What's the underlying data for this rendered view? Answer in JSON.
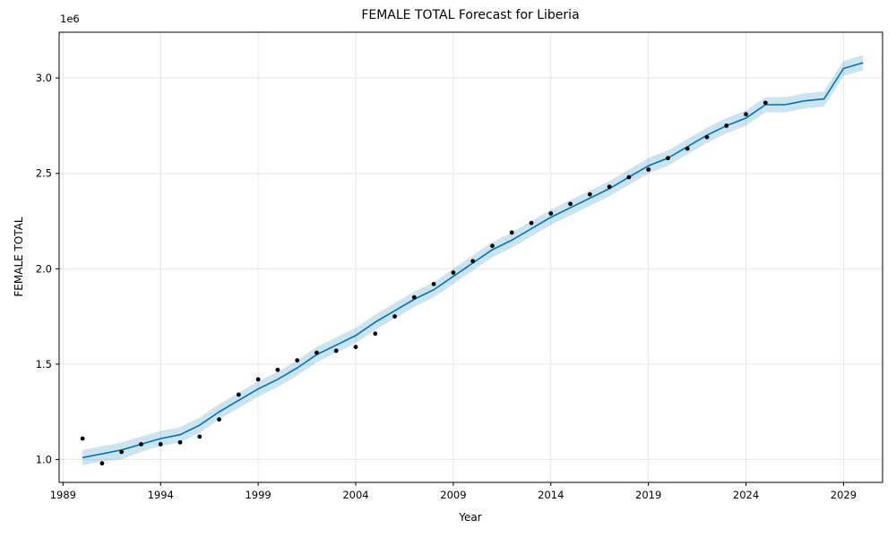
{
  "chart_data": {
    "type": "line",
    "title": "FEMALE TOTAL Forecast for Liberia",
    "xlabel": "Year",
    "ylabel": "FEMALE TOTAL",
    "y_offset_label": "1e6",
    "xlim": [
      1988.8,
      2031.0
    ],
    "ylim": [
      0.88,
      3.24
    ],
    "x_ticks": [
      1989,
      1994,
      1999,
      2004,
      2009,
      2014,
      2019,
      2024,
      2029
    ],
    "y_ticks": [
      1.0,
      1.5,
      2.0,
      2.5,
      3.0
    ],
    "y_tick_labels": [
      "1.0",
      "1.5",
      "2.0",
      "2.5",
      "3.0"
    ],
    "grid": true,
    "colors": {
      "forecast": "#0072b2",
      "band": "#0072b2",
      "observed": "#000000",
      "grid": "#e6e6e6"
    },
    "series": [
      {
        "role": "forecast",
        "x": [
          1990,
          1991,
          1992,
          1993,
          1994,
          1995,
          1996,
          1997,
          1998,
          1999,
          2000,
          2001,
          2002,
          2003,
          2004,
          2005,
          2006,
          2007,
          2008,
          2009,
          2010,
          2011,
          2012,
          2013,
          2014,
          2015,
          2016,
          2017,
          2018,
          2019,
          2020,
          2021,
          2022,
          2023,
          2024,
          2025,
          2026,
          2027,
          2028,
          2029,
          2030
        ],
        "values": [
          1.01,
          1.03,
          1.05,
          1.08,
          1.11,
          1.13,
          1.18,
          1.25,
          1.31,
          1.37,
          1.42,
          1.48,
          1.55,
          1.6,
          1.65,
          1.72,
          1.78,
          1.84,
          1.89,
          1.96,
          2.03,
          2.1,
          2.15,
          2.21,
          2.27,
          2.32,
          2.37,
          2.42,
          2.48,
          2.54,
          2.58,
          2.64,
          2.7,
          2.75,
          2.79,
          2.86,
          2.86,
          2.88,
          2.89,
          3.05,
          3.08
        ],
        "lower": [
          0.97,
          0.99,
          1.0,
          1.04,
          1.07,
          1.09,
          1.14,
          1.21,
          1.27,
          1.33,
          1.38,
          1.44,
          1.51,
          1.56,
          1.61,
          1.68,
          1.74,
          1.8,
          1.85,
          1.92,
          1.99,
          2.06,
          2.11,
          2.17,
          2.23,
          2.28,
          2.33,
          2.38,
          2.44,
          2.5,
          2.54,
          2.6,
          2.66,
          2.71,
          2.75,
          2.82,
          2.82,
          2.84,
          2.85,
          3.01,
          3.04
        ],
        "upper": [
          1.05,
          1.07,
          1.09,
          1.12,
          1.15,
          1.17,
          1.22,
          1.29,
          1.35,
          1.41,
          1.46,
          1.52,
          1.59,
          1.64,
          1.69,
          1.76,
          1.82,
          1.88,
          1.93,
          2.0,
          2.07,
          2.14,
          2.19,
          2.25,
          2.31,
          2.36,
          2.41,
          2.46,
          2.52,
          2.58,
          2.62,
          2.68,
          2.74,
          2.79,
          2.83,
          2.9,
          2.9,
          2.92,
          2.93,
          3.09,
          3.12
        ]
      },
      {
        "role": "observed",
        "x": [
          1990,
          1991,
          1992,
          1993,
          1994,
          1995,
          1996,
          1997,
          1998,
          1999,
          2000,
          2001,
          2002,
          2003,
          2004,
          2005,
          2006,
          2007,
          2008,
          2009,
          2010,
          2011,
          2012,
          2013,
          2014,
          2015,
          2016,
          2017,
          2018,
          2019,
          2020,
          2021,
          2022,
          2023,
          2024,
          2025
        ],
        "values": [
          1.11,
          0.98,
          1.04,
          1.08,
          1.08,
          1.09,
          1.12,
          1.21,
          1.34,
          1.42,
          1.47,
          1.52,
          1.56,
          1.57,
          1.59,
          1.66,
          1.75,
          1.85,
          1.92,
          1.98,
          2.04,
          2.12,
          2.19,
          2.24,
          2.29,
          2.34,
          2.39,
          2.43,
          2.48,
          2.52,
          2.58,
          2.63,
          2.69,
          2.75,
          2.81,
          2.87
        ]
      }
    ]
  }
}
